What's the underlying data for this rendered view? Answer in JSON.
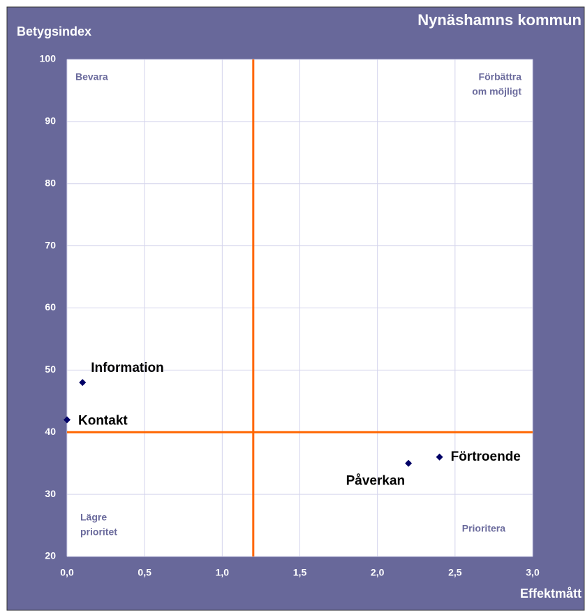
{
  "chart_data": {
    "type": "scatter",
    "title": "Nynäshamns kommun",
    "y_label": "Betygsindex",
    "x_label": "Effektmått",
    "points": [
      "Information",
      "Kontakt",
      "Förtroende",
      "Påverkan"
    ],
    "x": [
      0.1,
      0,
      2.4,
      2.2
    ],
    "values": [
      48,
      42,
      36,
      35
    ],
    "color": "#000066",
    "xlim": [
      0,
      3
    ],
    "ylim": [
      20,
      100
    ],
    "xticks": [
      {
        "value": 0,
        "label": "0,0"
      },
      {
        "value": 0.5,
        "label": "0,5"
      },
      {
        "value": 1,
        "label": "1,0"
      },
      {
        "value": 1.5,
        "label": "1,5"
      },
      {
        "value": 2,
        "label": "2,0"
      },
      {
        "value": 2.5,
        "label": "2,5"
      },
      {
        "value": 3,
        "label": "3,0"
      }
    ],
    "yticks": [
      20,
      30,
      40,
      50,
      60,
      70,
      80,
      90,
      100
    ],
    "grid": true,
    "reference_lines": {
      "x": 1.2,
      "y": 40,
      "color": "#ff6600"
    },
    "annotations": [
      [
        "Bevara"
      ],
      [
        "Förbättra",
        "om möjligt"
      ],
      [
        "Lägre",
        "prioritet"
      ],
      [
        "Prioritera"
      ]
    ]
  }
}
